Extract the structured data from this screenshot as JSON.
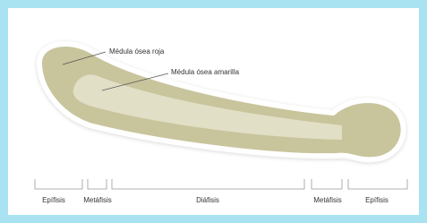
{
  "labels": {
    "red_marrow": "Médula ósea roja",
    "yellow_marrow": "Médula ósea amarilla"
  },
  "sections": [
    "Epífisis",
    "Metáfisis",
    "Diáfisis",
    "Metáfisis",
    "Epífisis"
  ]
}
